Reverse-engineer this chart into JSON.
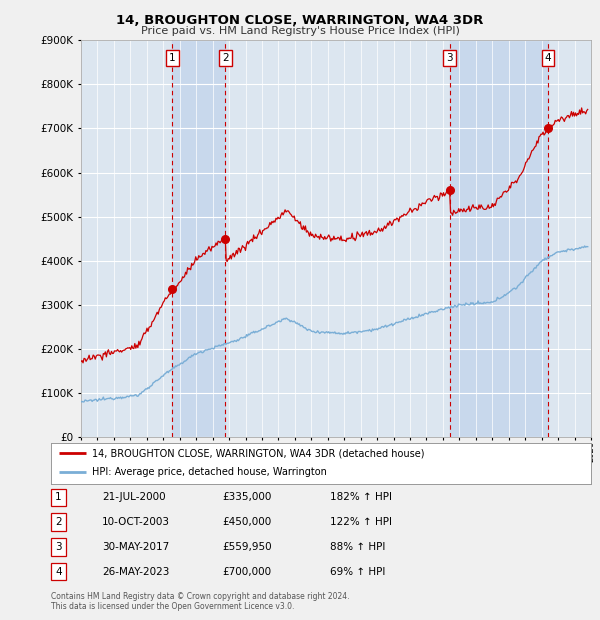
{
  "title": "14, BROUGHTON CLOSE, WARRINGTON, WA4 3DR",
  "subtitle": "Price paid vs. HM Land Registry's House Price Index (HPI)",
  "legend_label_red": "14, BROUGHTON CLOSE, WARRINGTON, WA4 3DR (detached house)",
  "legend_label_blue": "HPI: Average price, detached house, Warrington",
  "footer1": "Contains HM Land Registry data © Crown copyright and database right 2024.",
  "footer2": "This data is licensed under the Open Government Licence v3.0.",
  "sales": [
    {
      "label": "1",
      "date_num": 2000.55,
      "price": 335000,
      "date_str": "21-JUL-2000",
      "pct": "182%",
      "direction": "↑"
    },
    {
      "label": "2",
      "date_num": 2003.78,
      "price": 450000,
      "date_str": "10-OCT-2003",
      "pct": "122%",
      "direction": "↑"
    },
    {
      "label": "3",
      "date_num": 2017.41,
      "price": 559950,
      "date_str": "30-MAY-2017",
      "pct": "88%",
      "direction": "↑"
    },
    {
      "label": "4",
      "date_num": 2023.4,
      "price": 700000,
      "date_str": "26-MAY-2023",
      "pct": "69%",
      "direction": "↑"
    }
  ],
  "table_rows": [
    [
      "1",
      "21-JUL-2000",
      "£335,000",
      "182% ↑ HPI"
    ],
    [
      "2",
      "10-OCT-2003",
      "£450,000",
      "122% ↑ HPI"
    ],
    [
      "3",
      "30-MAY-2017",
      "£559,950",
      "88% ↑ HPI"
    ],
    [
      "4",
      "26-MAY-2023",
      "£700,000",
      "69% ↑ HPI"
    ]
  ],
  "xmin": 1995,
  "xmax": 2026,
  "ymin": 0,
  "ymax": 900000,
  "yticks": [
    0,
    100000,
    200000,
    300000,
    400000,
    500000,
    600000,
    700000,
    800000,
    900000
  ],
  "ytick_labels": [
    "£0",
    "£100K",
    "£200K",
    "£300K",
    "£400K",
    "£500K",
    "£600K",
    "£700K",
    "£800K",
    "£900K"
  ],
  "fig_bg_color": "#f0f0f0",
  "plot_bg_color": "#dce6f0",
  "grid_color": "#ffffff",
  "red_color": "#cc0000",
  "blue_color": "#7aaed6",
  "vline_color": "#cc0000",
  "shade_color": "#c8d8ec",
  "legend_bg": "#ffffff",
  "table_bg": "#ffffff"
}
